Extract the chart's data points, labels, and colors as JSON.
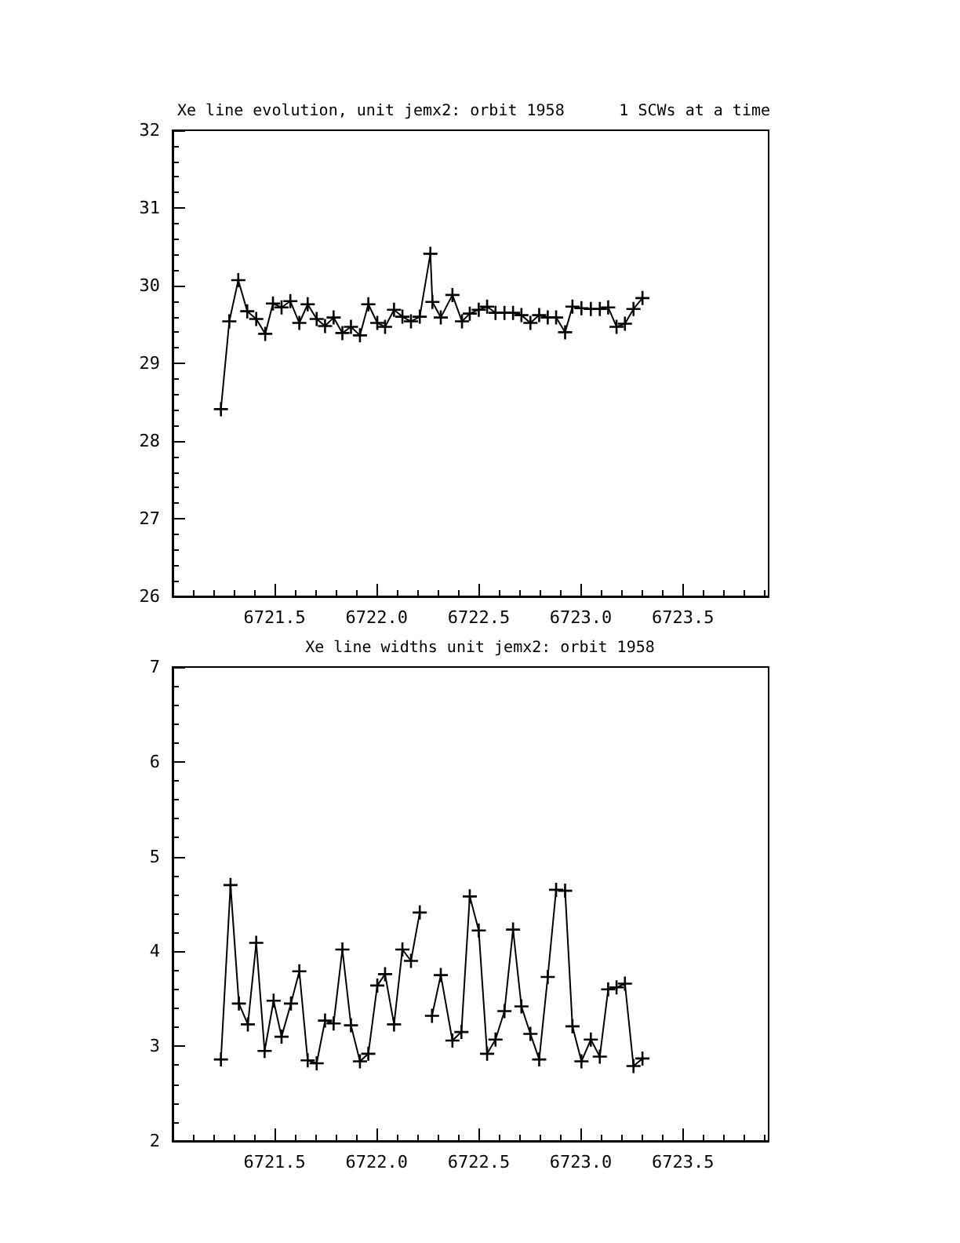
{
  "chart_data": [
    {
      "type": "line",
      "title": "Xe line evolution, unit jemx2: orbit 1958",
      "subtitle": "1 SCWs at a time",
      "marker": "cross",
      "line_style": "solid",
      "grid": false,
      "color": "#000000",
      "x": [
        6721.237,
        6721.278,
        6721.322,
        6721.366,
        6721.41,
        6721.454,
        6721.492,
        6721.534,
        6721.577,
        6721.621,
        6721.662,
        6721.706,
        6721.747,
        6721.789,
        6721.832,
        6721.874,
        6721.918,
        6721.959,
        6722.003,
        6722.041,
        6722.085,
        6722.126,
        6722.168,
        6722.211,
        6722.263,
        6722.273,
        6722.314,
        6722.371,
        6722.418,
        6722.456,
        6722.5,
        6722.541,
        6722.582,
        6722.626,
        6722.668,
        6722.709,
        6722.753,
        6722.796,
        6722.838,
        6722.879,
        6722.923,
        6722.959,
        6723.003,
        6723.049,
        6723.093,
        6723.134,
        6723.175,
        6723.216,
        6723.258,
        6723.302
      ],
      "values": [
        28.41,
        29.54,
        30.07,
        29.67,
        29.57,
        29.38,
        29.77,
        29.72,
        29.8,
        29.52,
        29.76,
        29.57,
        29.48,
        29.59,
        29.39,
        29.47,
        29.36,
        29.76,
        29.52,
        29.47,
        29.69,
        29.6,
        29.54,
        29.6,
        30.41,
        29.79,
        29.59,
        29.88,
        29.54,
        29.64,
        29.69,
        29.73,
        29.65,
        29.65,
        29.65,
        29.62,
        29.52,
        29.62,
        29.59,
        29.59,
        29.4,
        29.73,
        29.71,
        29.7,
        29.7,
        29.72,
        29.47,
        29.51,
        29.7,
        29.84
      ],
      "xlim": [
        6721.0,
        6723.92
      ],
      "xticks": [
        {
          "value": 6721.5,
          "label": "6721.5"
        },
        {
          "value": 6722.0,
          "label": "6722.0"
        },
        {
          "value": 6722.5,
          "label": "6722.5"
        },
        {
          "value": 6723.0,
          "label": "6723.0"
        },
        {
          "value": 6723.5,
          "label": "6723.5"
        }
      ],
      "ylim": [
        26,
        32
      ],
      "yticks": [
        26,
        27,
        28,
        29,
        30,
        31,
        32
      ]
    },
    {
      "type": "line",
      "title": "Xe line widths unit jemx2: orbit 1958",
      "marker": "cross",
      "line_style": "solid",
      "grid": false,
      "color": "#000000",
      "x": [
        6721.237,
        6721.284,
        6721.325,
        6721.369,
        6721.41,
        6721.451,
        6721.495,
        6721.534,
        6721.58,
        6721.621,
        6721.662,
        6721.706,
        6721.747,
        6721.789,
        6721.832,
        6721.874,
        6721.918,
        6721.959,
        6722.003,
        6722.041,
        6722.085,
        6722.126,
        6722.168,
        6722.211,
        6722.24,
        6722.271,
        6722.314,
        6722.371,
        6722.415,
        6722.456,
        6722.5,
        6722.541,
        6722.582,
        6722.626,
        6722.668,
        6722.709,
        6722.753,
        6722.796,
        6722.838,
        6722.879,
        6722.923,
        6722.959,
        6723.003,
        6723.049,
        6723.093,
        6723.134,
        6723.175,
        6723.216,
        6723.258,
        6723.302
      ],
      "values": [
        2.86,
        4.7,
        3.45,
        3.23,
        4.09,
        2.95,
        3.48,
        3.1,
        3.45,
        3.79,
        2.85,
        2.82,
        3.27,
        3.24,
        4.02,
        3.22,
        2.84,
        2.92,
        3.64,
        3.76,
        3.23,
        4.02,
        3.9,
        4.41,
        null,
        3.32,
        3.75,
        3.06,
        3.15,
        4.58,
        4.22,
        2.92,
        3.07,
        3.37,
        4.23,
        3.42,
        3.13,
        2.86,
        3.73,
        4.65,
        4.64,
        3.21,
        2.84,
        3.07,
        2.89,
        3.6,
        3.62,
        3.66,
        2.79,
        2.87
      ],
      "xlim": [
        6721.0,
        6723.92
      ],
      "xticks": [
        {
          "value": 6721.5,
          "label": "6721.5"
        },
        {
          "value": 6722.0,
          "label": "6722.0"
        },
        {
          "value": 6722.5,
          "label": "6722.5"
        },
        {
          "value": 6723.0,
          "label": "6723.0"
        },
        {
          "value": 6723.5,
          "label": "6723.5"
        }
      ],
      "ylim": [
        2,
        7
      ],
      "yticks": [
        2,
        3,
        4,
        5,
        6,
        7
      ]
    }
  ]
}
